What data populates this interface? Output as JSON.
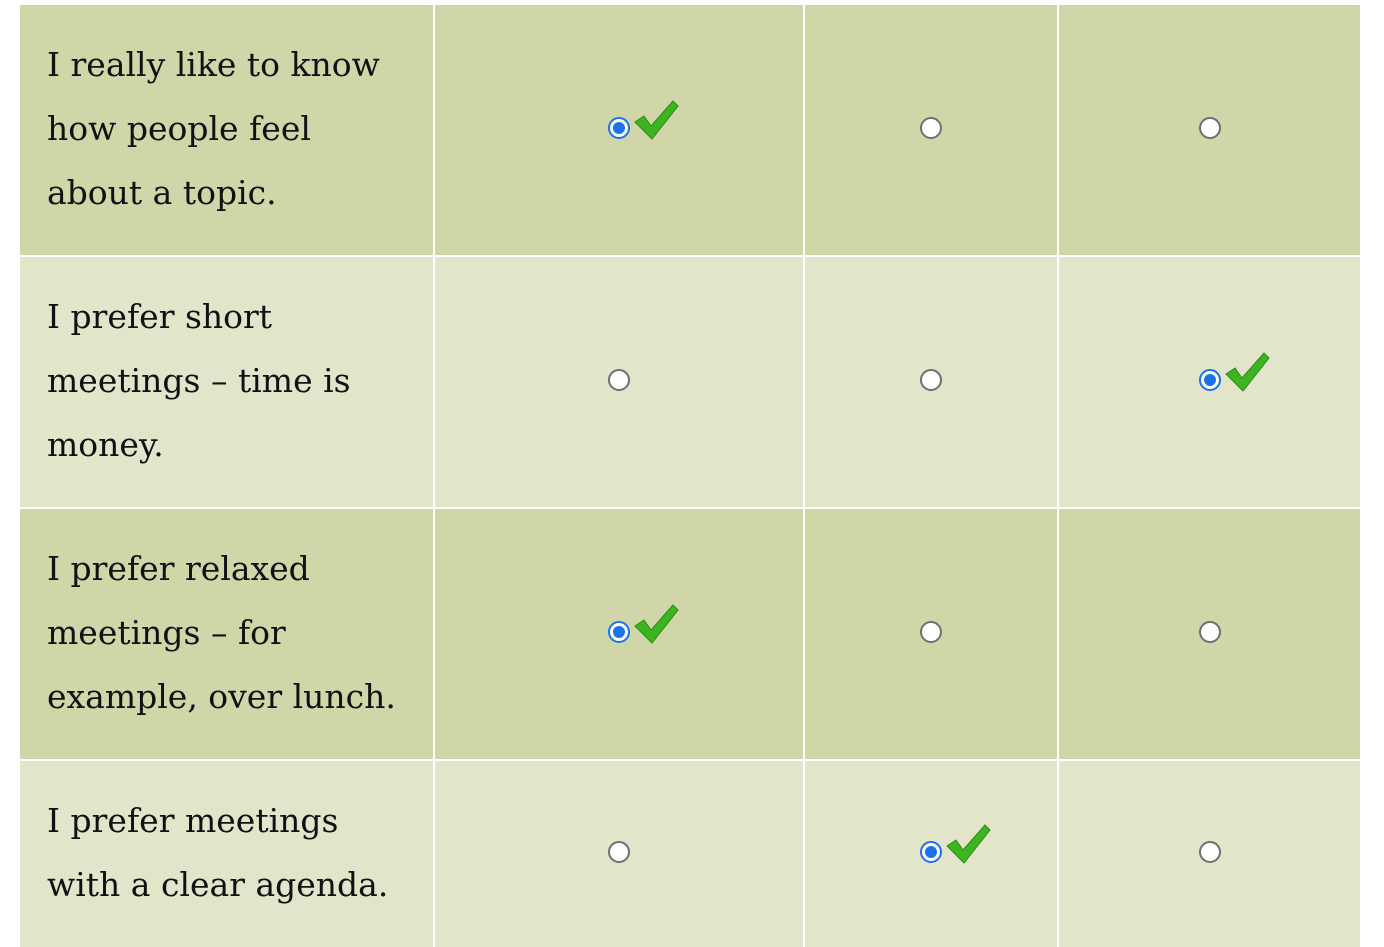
{
  "statements": [
    {
      "text": "I really like to know how people feel about a topic.",
      "selected": 0
    },
    {
      "text": "I prefer short meetings – time is money.",
      "selected": 2
    },
    {
      "text": "I prefer relaxed meetings – for example, over lunch.",
      "selected": 0
    },
    {
      "text": "I prefer meetings with a clear agenda.",
      "selected": 1
    }
  ],
  "colors": {
    "row_odd": "#d1d6a9",
    "row_even": "#e3e5ca",
    "radio_selected": "#1a73e8",
    "checkmark": "#3cb521"
  },
  "icons": {
    "correct": "checkmark-icon"
  }
}
